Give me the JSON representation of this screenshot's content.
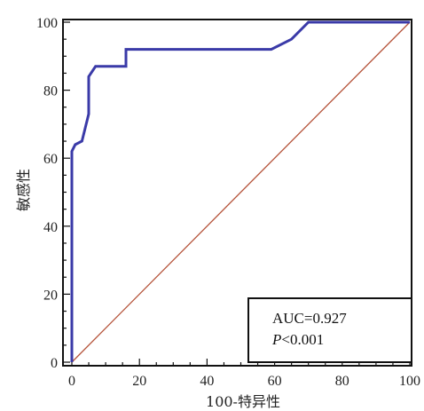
{
  "chart_data": {
    "type": "line",
    "xlabel": "100-特异性",
    "ylabel": "敏感性",
    "xlim": [
      0,
      100
    ],
    "ylim": [
      0,
      100
    ],
    "x_ticks": [
      0,
      20,
      40,
      60,
      80,
      100
    ],
    "y_ticks": [
      0,
      20,
      40,
      60,
      80,
      100
    ],
    "grid": false,
    "series": [
      {
        "role": "roc-curve",
        "color": "#3a3aa8",
        "x": [
          0,
          0,
          1,
          3,
          4,
          5,
          5,
          7,
          10,
          16,
          16,
          59,
          65,
          70,
          100
        ],
        "y": [
          0,
          62,
          64,
          65,
          69,
          73,
          84,
          87,
          87,
          87,
          92,
          92,
          95,
          100,
          100
        ]
      },
      {
        "role": "reference-line",
        "color": "#b5533a",
        "x": [
          0,
          100
        ],
        "y": [
          0,
          100
        ]
      }
    ],
    "annotation": {
      "line1": "AUC=0.927",
      "line2_italic": "P",
      "line2_rest": "<0.001"
    }
  }
}
